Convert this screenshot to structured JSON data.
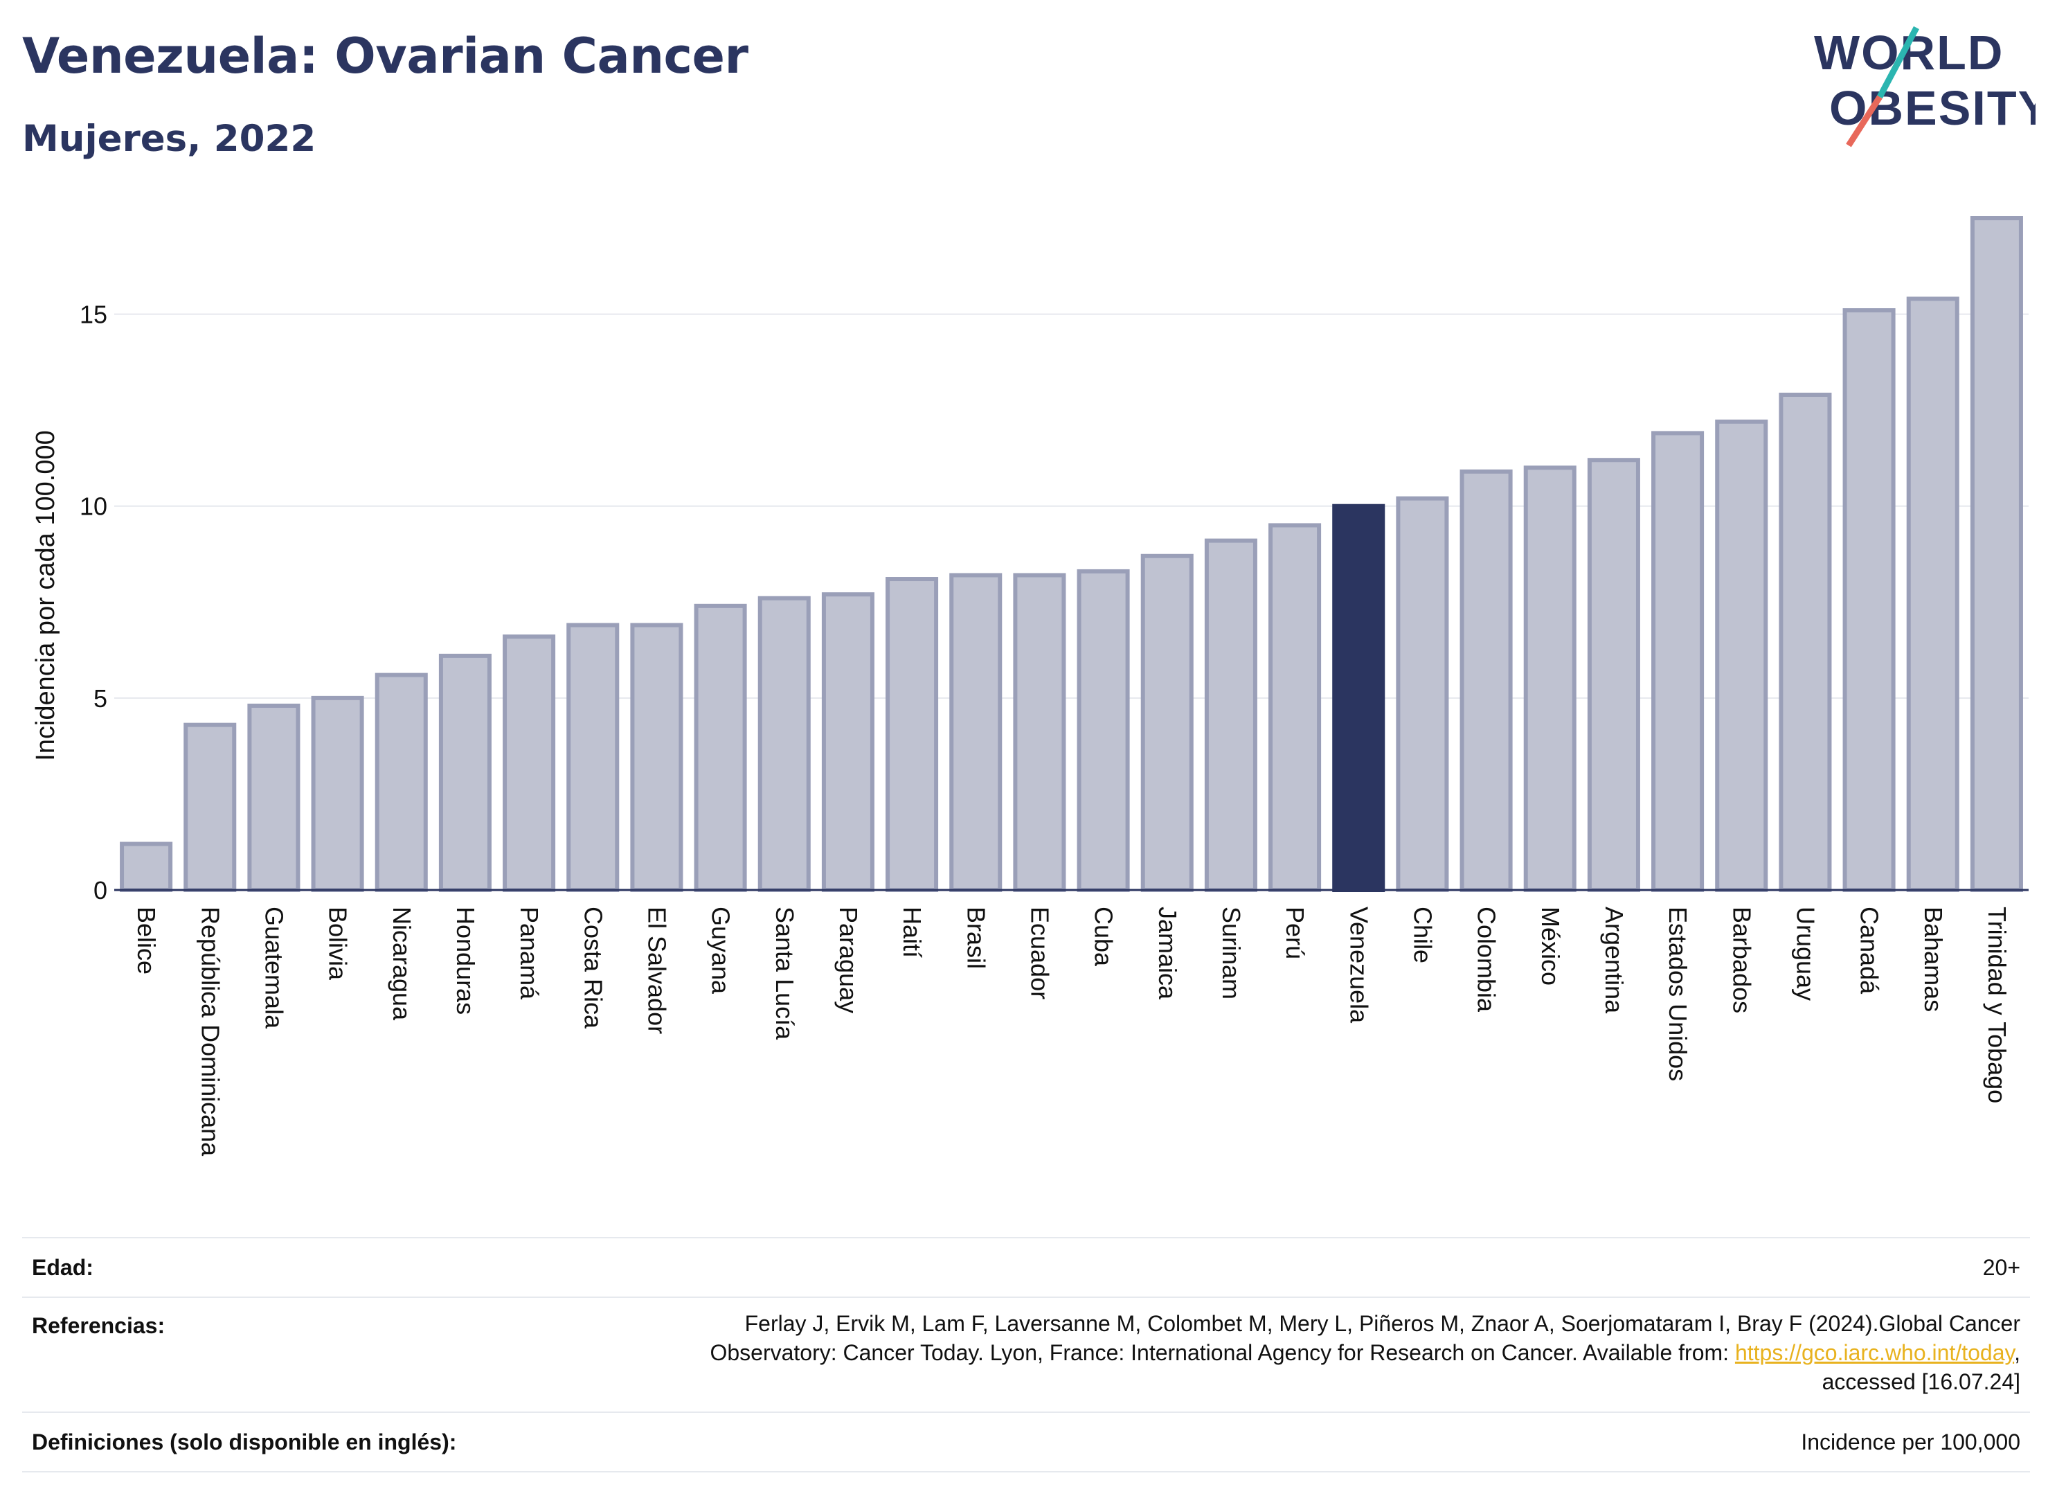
{
  "header": {
    "title": "Venezuela: Ovarian Cancer",
    "subtitle": "Mujeres, 2022"
  },
  "logo": {
    "line1": "WORLD",
    "line2": "OBESITY"
  },
  "colors": {
    "highlight": "#2b3560",
    "bar_fill": "#bfc2d1",
    "bar_stroke": "#9a9fb8",
    "grid": "#e6e8ee",
    "logo_teal": "#2bb5b0",
    "logo_coral": "#e8685a"
  },
  "chart_data": {
    "type": "bar",
    "title": "Venezuela: Ovarian Cancer",
    "ylabel": "Incidencia por cada 100.000",
    "xlabel": "",
    "ylim": [
      0,
      17.5
    ],
    "yticks": [
      0,
      5,
      10,
      15
    ],
    "grid": true,
    "highlight": "Venezuela",
    "categories": [
      "Belice",
      "República Dominicana",
      "Guatemala",
      "Bolivia",
      "Nicaragua",
      "Honduras",
      "Panamá",
      "Costa Rica",
      "El Salvador",
      "Guyana",
      "Santa Lucía",
      "Paraguay",
      "Haití",
      "Brasil",
      "Ecuador",
      "Cuba",
      "Jamaica",
      "Surinam",
      "Perú",
      "Venezuela",
      "Chile",
      "Colombia",
      "México",
      "Argentina",
      "Estados Unidos",
      "Barbados",
      "Uruguay",
      "Canadá",
      "Bahamas",
      "Trinidad y Tobago"
    ],
    "values": [
      1.2,
      4.3,
      4.8,
      5.0,
      5.6,
      6.1,
      6.6,
      6.9,
      6.9,
      7.4,
      7.6,
      7.7,
      8.1,
      8.2,
      8.2,
      8.3,
      8.7,
      9.1,
      9.5,
      10.0,
      10.2,
      10.9,
      11.0,
      11.2,
      11.9,
      12.2,
      12.9,
      15.1,
      15.4,
      17.5
    ]
  },
  "footer": {
    "age_label": "Edad:",
    "age_value": "20+",
    "ref_label": "Referencias:",
    "ref_text_1": "Ferlay J, Ervik M, Lam F, Laversanne M, Colombet M, Mery L, Piñeros M, Znaor A, Soerjomataram I, Bray F (2024).Global Cancer",
    "ref_text_2": "Observatory: Cancer Today. Lyon, France: International Agency for Research on Cancer. Available from: ",
    "ref_link": "https://gco.iarc.who.int/today",
    "ref_text_3": ",",
    "ref_text_4": "accessed [16.07.24]",
    "def_label": "Definiciones (solo disponible en inglés):",
    "def_value": "Incidence per 100,000"
  }
}
